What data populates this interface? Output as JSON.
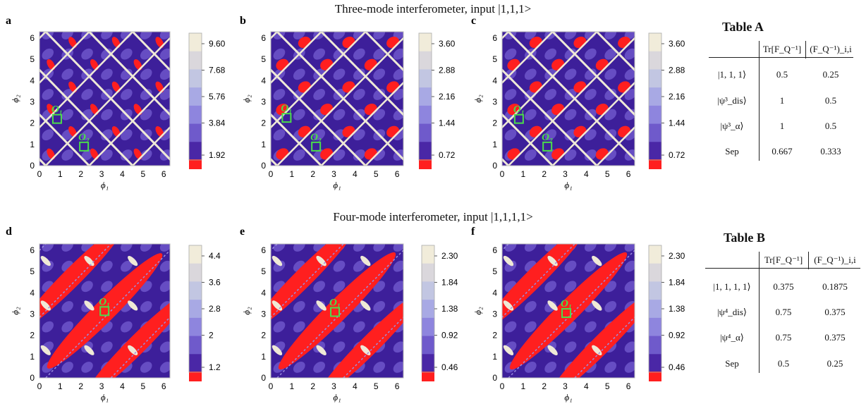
{
  "sections": [
    {
      "title": "Three-mode interferometer, input |1,1,1>"
    },
    {
      "title": "Four-mode interferometer, input |1,1,1,1>"
    }
  ],
  "panels": [
    {
      "letter": "a",
      "colorbar_ticks": [
        "9.60",
        "7.68",
        "5.76",
        "3.84",
        "1.92"
      ],
      "markers": [
        "O₁",
        "O₂"
      ]
    },
    {
      "letter": "b",
      "colorbar_ticks": [
        "3.60",
        "2.88",
        "2.16",
        "1.44",
        "0.72"
      ],
      "markers": [
        "O₁",
        "O₂"
      ]
    },
    {
      "letter": "c",
      "colorbar_ticks": [
        "3.60",
        "2.88",
        "2.16",
        "1.44",
        "0.72"
      ],
      "markers": [
        "O₁",
        "O₂"
      ]
    },
    {
      "letter": "d",
      "colorbar_ticks": [
        "4.4",
        "3.6",
        "2.8",
        "2",
        "1.2"
      ],
      "markers": [
        "O₁"
      ]
    },
    {
      "letter": "e",
      "colorbar_ticks": [
        "2.30",
        "1.84",
        "1.38",
        "0.92",
        "0.46"
      ],
      "markers": [
        "O₁"
      ]
    },
    {
      "letter": "f",
      "colorbar_ticks": [
        "2.30",
        "1.84",
        "1.38",
        "0.92",
        "0.46"
      ],
      "markers": [
        "O₁"
      ]
    }
  ],
  "axes": {
    "xlabel": "ϕ₁",
    "ylabel": "ϕ₂",
    "ticks": [
      "0",
      "1",
      "2",
      "3",
      "4",
      "5",
      "6"
    ]
  },
  "colors": {
    "purple_dark": "#3d1f9a",
    "purple_mid": "#6a52c8",
    "purple_light": "#9b8ee0",
    "cream": "#efe9d6",
    "red": "#ff1f1f",
    "marker_green": "#4bdc4b"
  },
  "tables": [
    {
      "title": "Table A",
      "headers": [
        "",
        "Tr[F_Q⁻¹]",
        "(F_Q⁻¹)_i,i"
      ],
      "rows": [
        [
          "|1, 1, 1⟩",
          "0.5",
          "0.25"
        ],
        [
          "|ψ³_dis⟩",
          "1",
          "0.5"
        ],
        [
          "|ψ³_α⟩",
          "1",
          "0.5"
        ],
        [
          "Sep",
          "0.667",
          "0.333"
        ]
      ]
    },
    {
      "title": "Table B",
      "headers": [
        "",
        "Tr[F_Q⁻¹]",
        "(F_Q⁻¹)_i,i"
      ],
      "rows": [
        [
          "|1, 1, 1, 1⟩",
          "0.375",
          "0.1875"
        ],
        [
          "|ψ⁴_dis⟩",
          "0.75",
          "0.375"
        ],
        [
          "|ψ⁴_α⟩",
          "0.75",
          "0.375"
        ],
        [
          "Sep",
          "0.5",
          "0.25"
        ]
      ]
    }
  ]
}
